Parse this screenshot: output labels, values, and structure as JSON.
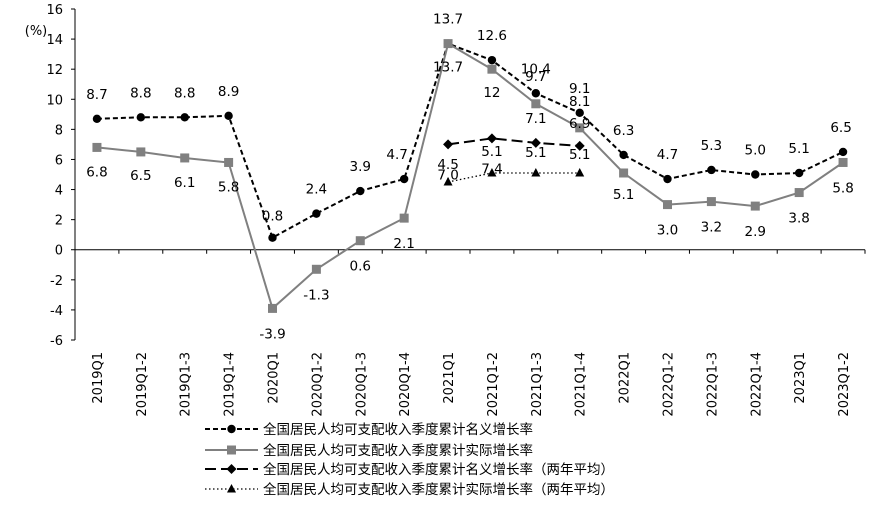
{
  "chart_data": {
    "type": "line",
    "title": "",
    "xlabel": "",
    "ylabel": "",
    "y_unit_label": "(%)",
    "ylim": [
      -6,
      16
    ],
    "ytick_step": 2,
    "grid": false,
    "legend_position": "bottom",
    "categories": [
      "2019Q1",
      "2019Q1-2",
      "2019Q1-3",
      "2019Q1-4",
      "2020Q1",
      "2020Q1-2",
      "2020Q1-3",
      "2020Q1-4",
      "2021Q1",
      "2021Q1-2",
      "2021Q1-3",
      "2021Q1-4",
      "2022Q1",
      "2022Q1-2",
      "2022Q1-3",
      "2022Q1-4",
      "2023Q1",
      "2023Q1-2"
    ],
    "series": [
      {
        "name": "全国居民人均可支配收入季度累计名义增长率",
        "values": [
          8.7,
          8.8,
          8.8,
          8.9,
          0.8,
          2.4,
          3.9,
          4.7,
          13.7,
          12.6,
          10.4,
          9.1,
          6.3,
          4.7,
          5.3,
          5.0,
          5.1,
          6.5
        ],
        "labels": [
          "8.7",
          "8.8",
          "8.8",
          "8.9",
          "0.8",
          "2.4",
          "3.9",
          "4.7",
          "13.7",
          "12.6",
          "10.4",
          "9.1",
          "6.3",
          "4.7",
          "5.3",
          "5.0",
          "5.1",
          "6.5"
        ],
        "color": "#000000",
        "line_style": "short-dash",
        "marker": "circle"
      },
      {
        "name": "全国居民人均可支配收入季度累计实际增长率",
        "values": [
          6.8,
          6.5,
          6.1,
          5.8,
          -3.9,
          -1.3,
          0.6,
          2.1,
          13.7,
          12.0,
          9.7,
          8.1,
          5.1,
          3.0,
          3.2,
          2.9,
          3.8,
          5.8
        ],
        "labels": [
          "6.8",
          "6.5",
          "6.1",
          "5.8",
          "-3.9",
          "-1.3",
          "0.6",
          "2.1",
          "13.7",
          "12",
          "9.7",
          "8.1",
          "5.1",
          "3.0",
          "3.2",
          "2.9",
          "3.8",
          "5.8"
        ],
        "color": "#808080",
        "line_style": "solid",
        "marker": "square"
      },
      {
        "name": "全国居民人均可支配收入季度累计名义增长率（两年平均）",
        "values": [
          null,
          null,
          null,
          null,
          null,
          null,
          null,
          null,
          7.0,
          7.4,
          7.1,
          6.9,
          null,
          null,
          null,
          null,
          null,
          null
        ],
        "labels": [
          null,
          null,
          null,
          null,
          null,
          null,
          null,
          null,
          "7.0",
          "7.4",
          "7.1",
          "6.9",
          null,
          null,
          null,
          null,
          null,
          null
        ],
        "color": "#000000",
        "line_style": "long-dash",
        "marker": "diamond"
      },
      {
        "name": "全国居民人均可支配收入季度累计实际增长率（两年平均）",
        "values": [
          null,
          null,
          null,
          null,
          null,
          null,
          null,
          null,
          4.5,
          5.1,
          5.1,
          5.1,
          null,
          null,
          null,
          null,
          null,
          null
        ],
        "labels": [
          null,
          null,
          null,
          null,
          null,
          null,
          null,
          null,
          "4.5",
          "5.1",
          "5.1",
          "5.1",
          null,
          null,
          null,
          null,
          null,
          null
        ],
        "color": "#000000",
        "line_style": "dotted",
        "marker": "triangle"
      }
    ]
  }
}
